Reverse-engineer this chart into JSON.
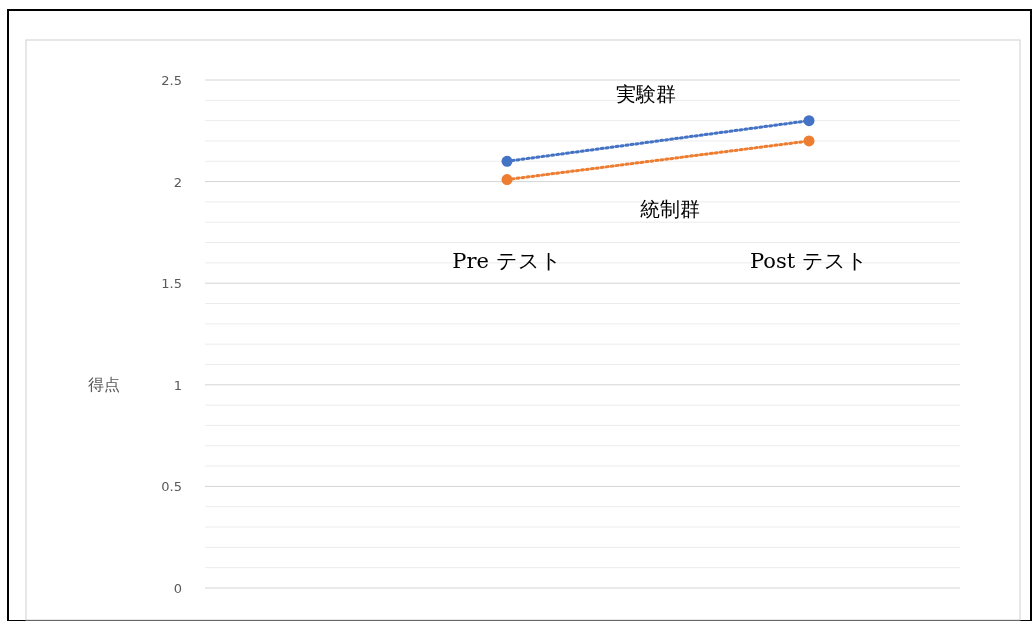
{
  "chart_data": {
    "type": "line",
    "ylabel": "得点",
    "categories": [
      null,
      "Pre テスト",
      "Post テスト"
    ],
    "series": [
      {
        "name": "実験群",
        "color": "#4472c4",
        "values": [
          null,
          2.1,
          2.3
        ]
      },
      {
        "name": "統制群",
        "color": "#ed7d31",
        "values": [
          null,
          2.01,
          2.2
        ]
      }
    ],
    "ylim": [
      0,
      2.5
    ],
    "yticks": [
      0,
      0.5,
      1,
      1.5,
      2,
      2.5
    ],
    "grid": "y",
    "marker": "circle",
    "line_style": "dotted"
  }
}
